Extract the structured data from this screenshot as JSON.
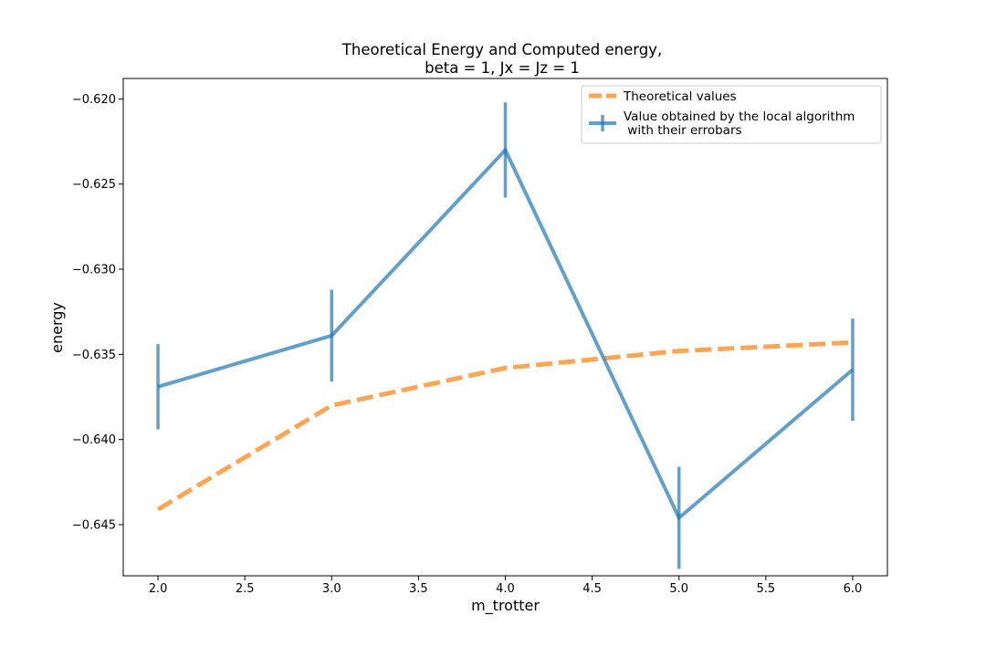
{
  "chart_data": {
    "type": "line",
    "title": "Theoretical Energy and Computed energy,",
    "subtitle": "beta = 1, Jx = Jz = 1",
    "xlabel": "m_trotter",
    "ylabel": "energy",
    "xlim": [
      1.8,
      6.2
    ],
    "ylim": [
      -0.648,
      -0.6188
    ],
    "x_ticks": [
      2.0,
      2.5,
      3.0,
      3.5,
      4.0,
      4.5,
      5.0,
      5.5,
      6.0
    ],
    "x_tick_labels": [
      "2.0",
      "2.5",
      "3.0",
      "3.5",
      "4.0",
      "4.5",
      "5.0",
      "5.5",
      "6.0"
    ],
    "y_ticks": [
      -0.645,
      -0.64,
      -0.635,
      -0.63,
      -0.625,
      -0.62
    ],
    "y_tick_labels": [
      "−0.645",
      "−0.640",
      "−0.635",
      "−0.630",
      "−0.625",
      "−0.620"
    ],
    "grid": false,
    "legend_position": "top-right",
    "series": [
      {
        "name": "Theoretical values",
        "style": "dashed",
        "color": "#ff7f0e",
        "x": [
          2,
          3,
          4,
          5,
          6
        ],
        "y": [
          -0.6441,
          -0.638,
          -0.6358,
          -0.6348,
          -0.6343
        ]
      },
      {
        "name": "Value obtained by the local algorithm\n with their errobars",
        "style": "solid",
        "color": "#1f77b4",
        "x": [
          2,
          3,
          4,
          5,
          6
        ],
        "y": [
          -0.6369,
          -0.6339,
          -0.623,
          -0.6446,
          -0.6359
        ],
        "yerr": [
          0.0025,
          0.0027,
          0.0028,
          0.003,
          0.003
        ]
      }
    ]
  }
}
